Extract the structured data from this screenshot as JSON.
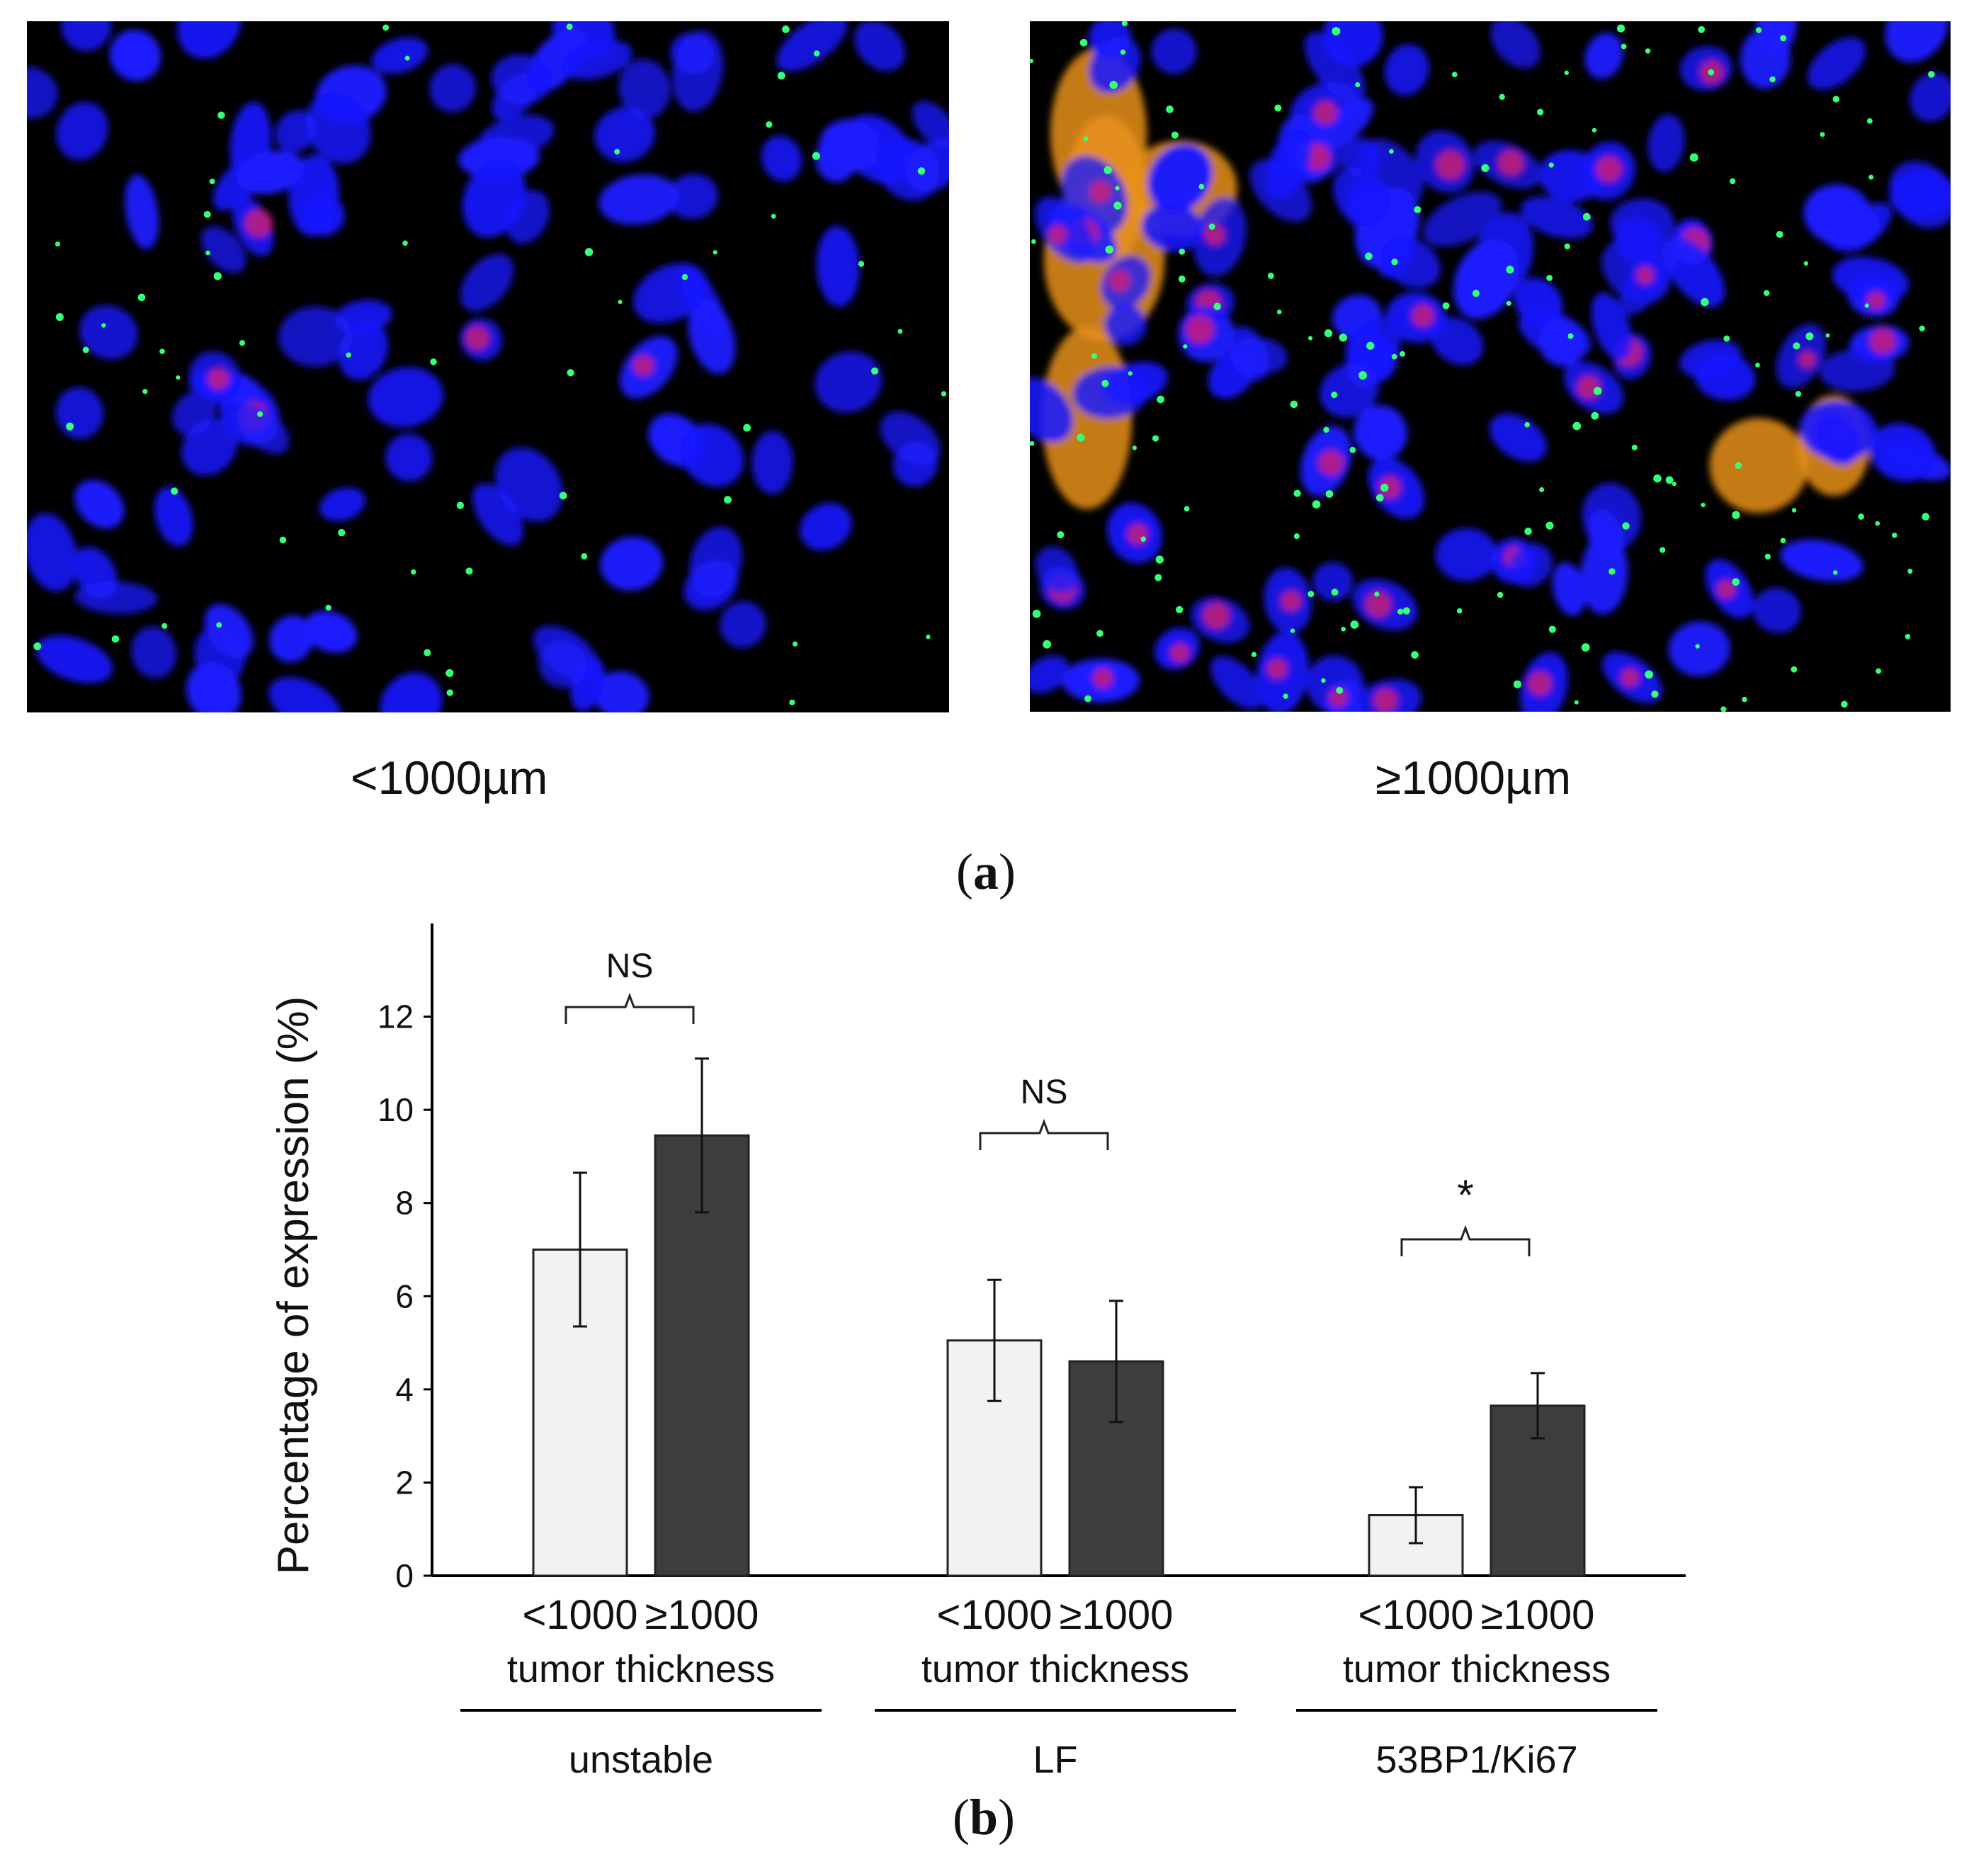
{
  "panel_a": {
    "label_letter": "a",
    "images": [
      {
        "caption": "<1000µm"
      },
      {
        "caption": "≥1000µm"
      }
    ],
    "colors": {
      "nucleus": "#1a1aff",
      "foci": "#33ff77",
      "ki67": "#e0206a",
      "rbc": "#e8911a"
    }
  },
  "panel_b_label": "b",
  "chart_data": {
    "type": "bar",
    "ylabel": "Percentage of expression (%)",
    "ylim": [
      0,
      14
    ],
    "yticks": [
      "0",
      "2",
      "4",
      "6",
      "8",
      "10",
      "12"
    ],
    "category_sublabels": [
      "<1000",
      "≥1000"
    ],
    "category_axis_label": "tumor thickness",
    "groups": [
      {
        "name": "unstable",
        "significance": "NS",
        "bars": [
          {
            "label": "<1000",
            "value": 7.0,
            "err": 1.65
          },
          {
            "label": "≥1000",
            "value": 9.45,
            "err": 1.65
          }
        ]
      },
      {
        "name": "LF",
        "significance": "NS",
        "bars": [
          {
            "label": "<1000",
            "value": 5.05,
            "err": 1.3
          },
          {
            "label": "≥1000",
            "value": 4.6,
            "err": 1.3
          }
        ]
      },
      {
        "name": "53BP1/Ki67",
        "significance": "*",
        "bars": [
          {
            "label": "<1000",
            "value": 1.3,
            "err": 0.6
          },
          {
            "label": "≥1000",
            "value": 3.65,
            "err": 0.7
          }
        ]
      }
    ],
    "colors": {
      "below_1000": "#f2f2f2",
      "at_least_1000": "#3d3d3d"
    }
  }
}
